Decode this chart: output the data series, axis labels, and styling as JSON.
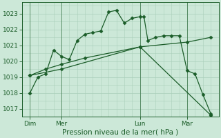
{
  "background_color": "#cce8d8",
  "grid_color": "#aacfba",
  "line_color": "#1a5c28",
  "title": "Pression niveau de la mer( hPa )",
  "ylim": [
    1016.5,
    1023.7
  ],
  "yticks": [
    1017,
    1018,
    1019,
    1020,
    1021,
    1022,
    1023
  ],
  "xlim": [
    0,
    25
  ],
  "day_labels": [
    "Dim",
    "Mer",
    "Lun",
    "Mar"
  ],
  "day_positions": [
    1,
    5,
    15,
    21
  ],
  "vline_positions": [
    1,
    5,
    15,
    21
  ],
  "series1_x": [
    1,
    2,
    3,
    4,
    5,
    6,
    7,
    8,
    9,
    10,
    11,
    12,
    13,
    14,
    15,
    15.5,
    16,
    17,
    18,
    19,
    20,
    21,
    22,
    23,
    24
  ],
  "series1_y": [
    1018.0,
    1019.0,
    1019.2,
    1020.7,
    1020.3,
    1020.1,
    1021.3,
    1021.7,
    1021.8,
    1021.9,
    1023.1,
    1023.2,
    1022.4,
    1022.7,
    1022.8,
    1022.8,
    1021.3,
    1021.5,
    1021.6,
    1021.6,
    1021.6,
    1019.4,
    1019.2,
    1017.9,
    1016.7
  ],
  "series2_x": [
    1,
    3,
    5,
    8,
    15,
    21,
    24
  ],
  "series2_y": [
    1019.1,
    1019.5,
    1019.8,
    1020.2,
    1020.9,
    1021.2,
    1021.5
  ],
  "series3_x": [
    1,
    5,
    15,
    24
  ],
  "series3_y": [
    1019.1,
    1019.5,
    1020.9,
    1016.6
  ]
}
